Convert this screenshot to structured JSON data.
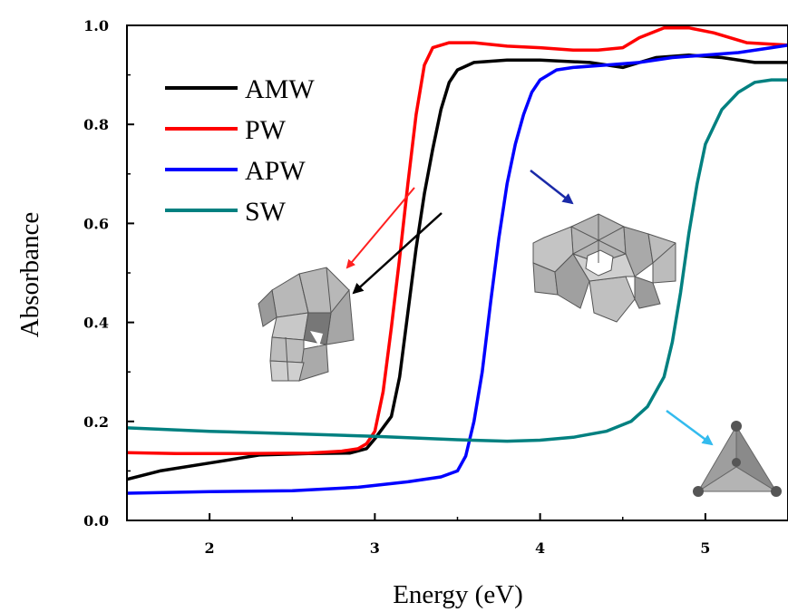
{
  "chart_data": {
    "type": "line",
    "title": "",
    "xlabel": "Energy (eV)",
    "ylabel": "Absorbance",
    "xlim": [
      1.5,
      5.5
    ],
    "ylim": [
      0.0,
      1.0
    ],
    "x_ticks": [
      2,
      3,
      4,
      5
    ],
    "x_tick_labels": [
      "2",
      "3",
      "4",
      "5"
    ],
    "y_ticks": [
      0.0,
      0.2,
      0.4,
      0.6,
      0.8,
      1.0
    ],
    "y_tick_labels": [
      "0.0",
      "0.2",
      "0.4",
      "0.6",
      "0.8",
      "1.0"
    ],
    "grid": false,
    "legend_position": "top-left",
    "series": [
      {
        "name": "AMW",
        "color": "#000000",
        "points": [
          [
            1.5,
            0.083
          ],
          [
            1.7,
            0.1
          ],
          [
            2.0,
            0.116
          ],
          [
            2.3,
            0.132
          ],
          [
            2.6,
            0.135
          ],
          [
            2.85,
            0.136
          ],
          [
            2.95,
            0.145
          ],
          [
            3.0,
            0.165
          ],
          [
            3.1,
            0.21
          ],
          [
            3.15,
            0.29
          ],
          [
            3.2,
            0.42
          ],
          [
            3.25,
            0.55
          ],
          [
            3.3,
            0.66
          ],
          [
            3.35,
            0.75
          ],
          [
            3.4,
            0.83
          ],
          [
            3.45,
            0.885
          ],
          [
            3.5,
            0.91
          ],
          [
            3.6,
            0.925
          ],
          [
            3.8,
            0.93
          ],
          [
            4.0,
            0.93
          ],
          [
            4.3,
            0.925
          ],
          [
            4.5,
            0.915
          ],
          [
            4.7,
            0.935
          ],
          [
            4.9,
            0.94
          ],
          [
            5.1,
            0.935
          ],
          [
            5.3,
            0.925
          ],
          [
            5.5,
            0.925
          ]
        ]
      },
      {
        "name": "PW",
        "color": "#ff0000",
        "points": [
          [
            1.5,
            0.137
          ],
          [
            1.8,
            0.135
          ],
          [
            2.2,
            0.135
          ],
          [
            2.6,
            0.136
          ],
          [
            2.8,
            0.14
          ],
          [
            2.9,
            0.145
          ],
          [
            2.95,
            0.155
          ],
          [
            3.0,
            0.18
          ],
          [
            3.05,
            0.26
          ],
          [
            3.1,
            0.39
          ],
          [
            3.15,
            0.53
          ],
          [
            3.2,
            0.68
          ],
          [
            3.25,
            0.82
          ],
          [
            3.3,
            0.92
          ],
          [
            3.35,
            0.955
          ],
          [
            3.45,
            0.965
          ],
          [
            3.6,
            0.965
          ],
          [
            3.8,
            0.958
          ],
          [
            4.0,
            0.955
          ],
          [
            4.2,
            0.95
          ],
          [
            4.35,
            0.95
          ],
          [
            4.5,
            0.955
          ],
          [
            4.6,
            0.975
          ],
          [
            4.75,
            0.995
          ],
          [
            4.9,
            0.995
          ],
          [
            5.05,
            0.985
          ],
          [
            5.25,
            0.965
          ],
          [
            5.5,
            0.96
          ]
        ]
      },
      {
        "name": "APW",
        "color": "#0000ff",
        "points": [
          [
            1.5,
            0.055
          ],
          [
            2.0,
            0.058
          ],
          [
            2.5,
            0.06
          ],
          [
            2.9,
            0.067
          ],
          [
            3.2,
            0.078
          ],
          [
            3.4,
            0.088
          ],
          [
            3.5,
            0.1
          ],
          [
            3.55,
            0.13
          ],
          [
            3.6,
            0.2
          ],
          [
            3.65,
            0.3
          ],
          [
            3.7,
            0.44
          ],
          [
            3.75,
            0.57
          ],
          [
            3.8,
            0.68
          ],
          [
            3.85,
            0.76
          ],
          [
            3.9,
            0.82
          ],
          [
            3.95,
            0.865
          ],
          [
            4.0,
            0.89
          ],
          [
            4.1,
            0.91
          ],
          [
            4.2,
            0.915
          ],
          [
            4.4,
            0.92
          ],
          [
            4.6,
            0.925
          ],
          [
            4.8,
            0.935
          ],
          [
            5.0,
            0.94
          ],
          [
            5.2,
            0.945
          ],
          [
            5.4,
            0.955
          ],
          [
            5.5,
            0.96
          ]
        ]
      },
      {
        "name": "SW",
        "color": "#008080",
        "points": [
          [
            1.5,
            0.187
          ],
          [
            2.0,
            0.18
          ],
          [
            2.5,
            0.175
          ],
          [
            3.0,
            0.17
          ],
          [
            3.5,
            0.163
          ],
          [
            3.8,
            0.16
          ],
          [
            4.0,
            0.162
          ],
          [
            4.2,
            0.168
          ],
          [
            4.4,
            0.18
          ],
          [
            4.55,
            0.2
          ],
          [
            4.65,
            0.23
          ],
          [
            4.75,
            0.29
          ],
          [
            4.8,
            0.36
          ],
          [
            4.85,
            0.46
          ],
          [
            4.9,
            0.58
          ],
          [
            4.95,
            0.68
          ],
          [
            5.0,
            0.76
          ],
          [
            5.1,
            0.83
          ],
          [
            5.2,
            0.865
          ],
          [
            5.3,
            0.885
          ],
          [
            5.4,
            0.89
          ],
          [
            5.5,
            0.89
          ]
        ]
      }
    ]
  },
  "insets": [
    {
      "icon": "amw-pw-polyoxometalate-cluster-icon",
      "arrow_colors": [
        "#ff0000",
        "#000000"
      ]
    },
    {
      "icon": "apw-polyoxometalate-ring-cluster-icon",
      "arrow_colors": [
        "#1a2aa8"
      ]
    },
    {
      "icon": "sw-tetrahedron-icon",
      "arrow_colors": [
        "#33bbee"
      ]
    }
  ]
}
